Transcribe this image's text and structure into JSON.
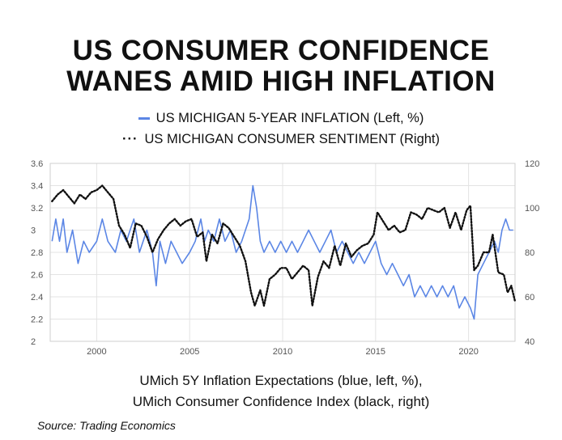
{
  "title_line1": "US CONSUMER CONFIDENCE",
  "title_line2": "WANES AMID HIGH INFLATION",
  "caption_line1": "UMich 5Y Inflation Expectations (blue, left, %),",
  "caption_line2": "UMich Consumer Confidence Index (black, right)",
  "source": "Source: Trading Economics",
  "colors": {
    "inflation": "#5b86e5",
    "sentiment": "#111111",
    "grid": "#e3e3e3",
    "axis_text": "#555555"
  },
  "chart_data": {
    "type": "line",
    "grid": true,
    "legend_position": "top",
    "x_ticks": [
      "2000",
      "2005",
      "2010",
      "2015",
      "2020"
    ],
    "x_range": [
      1997.5,
      2022.5
    ],
    "y_left": {
      "range": [
        2,
        3.6
      ],
      "ticks": [
        "3.6",
        "3.4",
        "3.2",
        "3",
        "2.8",
        "2.6",
        "2.4",
        "2.2",
        "2"
      ]
    },
    "y_right": {
      "range": [
        40,
        120
      ],
      "ticks": [
        "120",
        "100",
        "80",
        "60",
        "40"
      ]
    },
    "series": [
      {
        "name": "US MICHIGAN 5-YEAR INFLATION (Left, %)",
        "axis": "left",
        "style": "solid",
        "points": [
          [
            1997.6,
            2.9
          ],
          [
            1997.8,
            3.1
          ],
          [
            1998.0,
            2.9
          ],
          [
            1998.2,
            3.1
          ],
          [
            1998.4,
            2.8
          ],
          [
            1998.7,
            3.0
          ],
          [
            1999.0,
            2.7
          ],
          [
            1999.3,
            2.9
          ],
          [
            1999.6,
            2.8
          ],
          [
            2000.0,
            2.9
          ],
          [
            2000.3,
            3.1
          ],
          [
            2000.6,
            2.9
          ],
          [
            2001.0,
            2.8
          ],
          [
            2001.3,
            3.0
          ],
          [
            2001.6,
            2.9
          ],
          [
            2002.0,
            3.1
          ],
          [
            2002.3,
            2.8
          ],
          [
            2002.7,
            3.0
          ],
          [
            2003.0,
            2.8
          ],
          [
            2003.2,
            2.5
          ],
          [
            2003.4,
            2.9
          ],
          [
            2003.7,
            2.7
          ],
          [
            2004.0,
            2.9
          ],
          [
            2004.3,
            2.8
          ],
          [
            2004.6,
            2.7
          ],
          [
            2005.0,
            2.8
          ],
          [
            2005.3,
            2.9
          ],
          [
            2005.6,
            3.1
          ],
          [
            2005.8,
            2.9
          ],
          [
            2006.0,
            3.0
          ],
          [
            2006.3,
            2.9
          ],
          [
            2006.6,
            3.1
          ],
          [
            2006.9,
            2.9
          ],
          [
            2007.2,
            3.0
          ],
          [
            2007.5,
            2.8
          ],
          [
            2007.8,
            2.9
          ],
          [
            2008.0,
            3.0
          ],
          [
            2008.2,
            3.1
          ],
          [
            2008.4,
            3.4
          ],
          [
            2008.6,
            3.2
          ],
          [
            2008.8,
            2.9
          ],
          [
            2009.0,
            2.8
          ],
          [
            2009.3,
            2.9
          ],
          [
            2009.6,
            2.8
          ],
          [
            2009.9,
            2.9
          ],
          [
            2010.2,
            2.8
          ],
          [
            2010.5,
            2.9
          ],
          [
            2010.8,
            2.8
          ],
          [
            2011.1,
            2.9
          ],
          [
            2011.4,
            3.0
          ],
          [
            2011.7,
            2.9
          ],
          [
            2012.0,
            2.8
          ],
          [
            2012.3,
            2.9
          ],
          [
            2012.6,
            3.0
          ],
          [
            2012.9,
            2.8
          ],
          [
            2013.2,
            2.9
          ],
          [
            2013.5,
            2.8
          ],
          [
            2013.8,
            2.7
          ],
          [
            2014.1,
            2.8
          ],
          [
            2014.4,
            2.7
          ],
          [
            2014.7,
            2.8
          ],
          [
            2015.0,
            2.9
          ],
          [
            2015.3,
            2.7
          ],
          [
            2015.6,
            2.6
          ],
          [
            2015.9,
            2.7
          ],
          [
            2016.2,
            2.6
          ],
          [
            2016.5,
            2.5
          ],
          [
            2016.8,
            2.6
          ],
          [
            2017.1,
            2.4
          ],
          [
            2017.4,
            2.5
          ],
          [
            2017.7,
            2.4
          ],
          [
            2018.0,
            2.5
          ],
          [
            2018.3,
            2.4
          ],
          [
            2018.6,
            2.5
          ],
          [
            2018.9,
            2.4
          ],
          [
            2019.2,
            2.5
          ],
          [
            2019.5,
            2.3
          ],
          [
            2019.8,
            2.4
          ],
          [
            2020.1,
            2.3
          ],
          [
            2020.3,
            2.2
          ],
          [
            2020.5,
            2.6
          ],
          [
            2020.8,
            2.7
          ],
          [
            2021.1,
            2.8
          ],
          [
            2021.4,
            2.9
          ],
          [
            2021.6,
            2.8
          ],
          [
            2021.8,
            3.0
          ],
          [
            2022.0,
            3.1
          ],
          [
            2022.2,
            3.0
          ],
          [
            2022.4,
            3.0
          ]
        ]
      },
      {
        "name": "US MICHIGAN CONSUMER SENTIMENT (Right)",
        "axis": "right",
        "style": "dotted",
        "points": [
          [
            1997.6,
            103
          ],
          [
            1997.9,
            106
          ],
          [
            1998.2,
            108
          ],
          [
            1998.5,
            105
          ],
          [
            1998.8,
            102
          ],
          [
            1999.1,
            106
          ],
          [
            1999.4,
            104
          ],
          [
            1999.7,
            107
          ],
          [
            2000.0,
            108
          ],
          [
            2000.3,
            110
          ],
          [
            2000.6,
            107
          ],
          [
            2000.9,
            104
          ],
          [
            2001.2,
            92
          ],
          [
            2001.5,
            88
          ],
          [
            2001.8,
            82
          ],
          [
            2002.1,
            93
          ],
          [
            2002.4,
            92
          ],
          [
            2002.7,
            87
          ],
          [
            2003.0,
            80
          ],
          [
            2003.3,
            86
          ],
          [
            2003.6,
            90
          ],
          [
            2003.9,
            93
          ],
          [
            2004.2,
            95
          ],
          [
            2004.5,
            92
          ],
          [
            2004.8,
            94
          ],
          [
            2005.1,
            95
          ],
          [
            2005.4,
            87
          ],
          [
            2005.7,
            89
          ],
          [
            2005.9,
            76
          ],
          [
            2006.2,
            88
          ],
          [
            2006.5,
            84
          ],
          [
            2006.8,
            93
          ],
          [
            2007.1,
            91
          ],
          [
            2007.4,
            87
          ],
          [
            2007.7,
            83
          ],
          [
            2008.0,
            76
          ],
          [
            2008.3,
            62
          ],
          [
            2008.5,
            56
          ],
          [
            2008.8,
            63
          ],
          [
            2009.0,
            56
          ],
          [
            2009.3,
            68
          ],
          [
            2009.6,
            70
          ],
          [
            2009.9,
            73
          ],
          [
            2010.2,
            73
          ],
          [
            2010.5,
            68
          ],
          [
            2010.8,
            71
          ],
          [
            2011.1,
            74
          ],
          [
            2011.4,
            72
          ],
          [
            2011.6,
            56
          ],
          [
            2011.9,
            69
          ],
          [
            2012.2,
            76
          ],
          [
            2012.5,
            73
          ],
          [
            2012.8,
            83
          ],
          [
            2013.1,
            74
          ],
          [
            2013.4,
            84
          ],
          [
            2013.7,
            78
          ],
          [
            2014.0,
            81
          ],
          [
            2014.3,
            83
          ],
          [
            2014.6,
            84
          ],
          [
            2014.9,
            88
          ],
          [
            2015.1,
            98
          ],
          [
            2015.4,
            94
          ],
          [
            2015.7,
            90
          ],
          [
            2016.0,
            92
          ],
          [
            2016.3,
            89
          ],
          [
            2016.6,
            90
          ],
          [
            2016.9,
            98
          ],
          [
            2017.2,
            97
          ],
          [
            2017.5,
            95
          ],
          [
            2017.8,
            100
          ],
          [
            2018.1,
            99
          ],
          [
            2018.4,
            98
          ],
          [
            2018.7,
            100
          ],
          [
            2019.0,
            91
          ],
          [
            2019.3,
            98
          ],
          [
            2019.6,
            90
          ],
          [
            2019.9,
            99
          ],
          [
            2020.1,
            101
          ],
          [
            2020.3,
            72
          ],
          [
            2020.5,
            74
          ],
          [
            2020.8,
            80
          ],
          [
            2021.1,
            80
          ],
          [
            2021.3,
            88
          ],
          [
            2021.6,
            71
          ],
          [
            2021.9,
            70
          ],
          [
            2022.1,
            62
          ],
          [
            2022.3,
            65
          ],
          [
            2022.5,
            58
          ]
        ]
      }
    ]
  }
}
